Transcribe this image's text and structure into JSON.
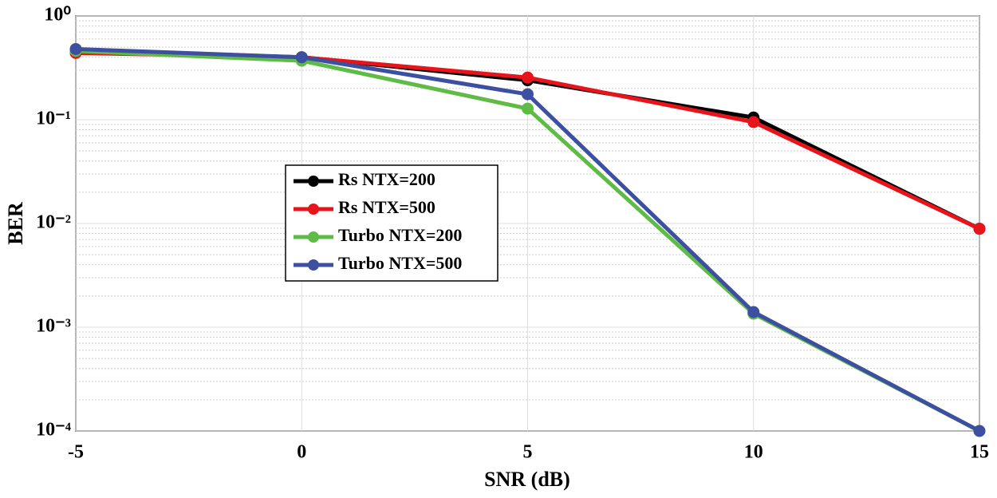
{
  "chart_data": {
    "type": "line",
    "xlabel": "SNR (dB)",
    "ylabel": "BER",
    "x": [
      -5,
      0,
      5,
      10,
      15
    ],
    "series": [
      {
        "name": "Rs NTX=200",
        "color": "#000000",
        "values": [
          0.46,
          0.4,
          0.24,
          0.105,
          0.0089
        ]
      },
      {
        "name": "Rs NTX=500",
        "color": "#e8141b",
        "values": [
          0.44,
          0.4,
          0.255,
          0.095,
          0.0089
        ]
      },
      {
        "name": "Turbo NTX=200",
        "color": "#5dbb46",
        "values": [
          0.46,
          0.37,
          0.128,
          0.00135,
          0.0001
        ]
      },
      {
        "name": "Turbo NTX=500",
        "color": "#3d4fa1",
        "values": [
          0.48,
          0.4,
          0.176,
          0.0014,
          0.0001
        ]
      }
    ],
    "xlim": [
      -5,
      15
    ],
    "xticks": [
      -5,
      0,
      5,
      10,
      15
    ],
    "ylim": [
      0.0001,
      1
    ],
    "log_y": true,
    "yticks": [
      {
        "value": 1,
        "label": "10⁰"
      },
      {
        "value": 0.1,
        "label": "10⁻¹"
      },
      {
        "value": 0.01,
        "label": "10⁻²"
      },
      {
        "value": 0.001,
        "label": "10⁻³"
      },
      {
        "value": 0.0001,
        "label": "10⁻⁴"
      }
    ],
    "grid": true,
    "legend": "center-left"
  }
}
